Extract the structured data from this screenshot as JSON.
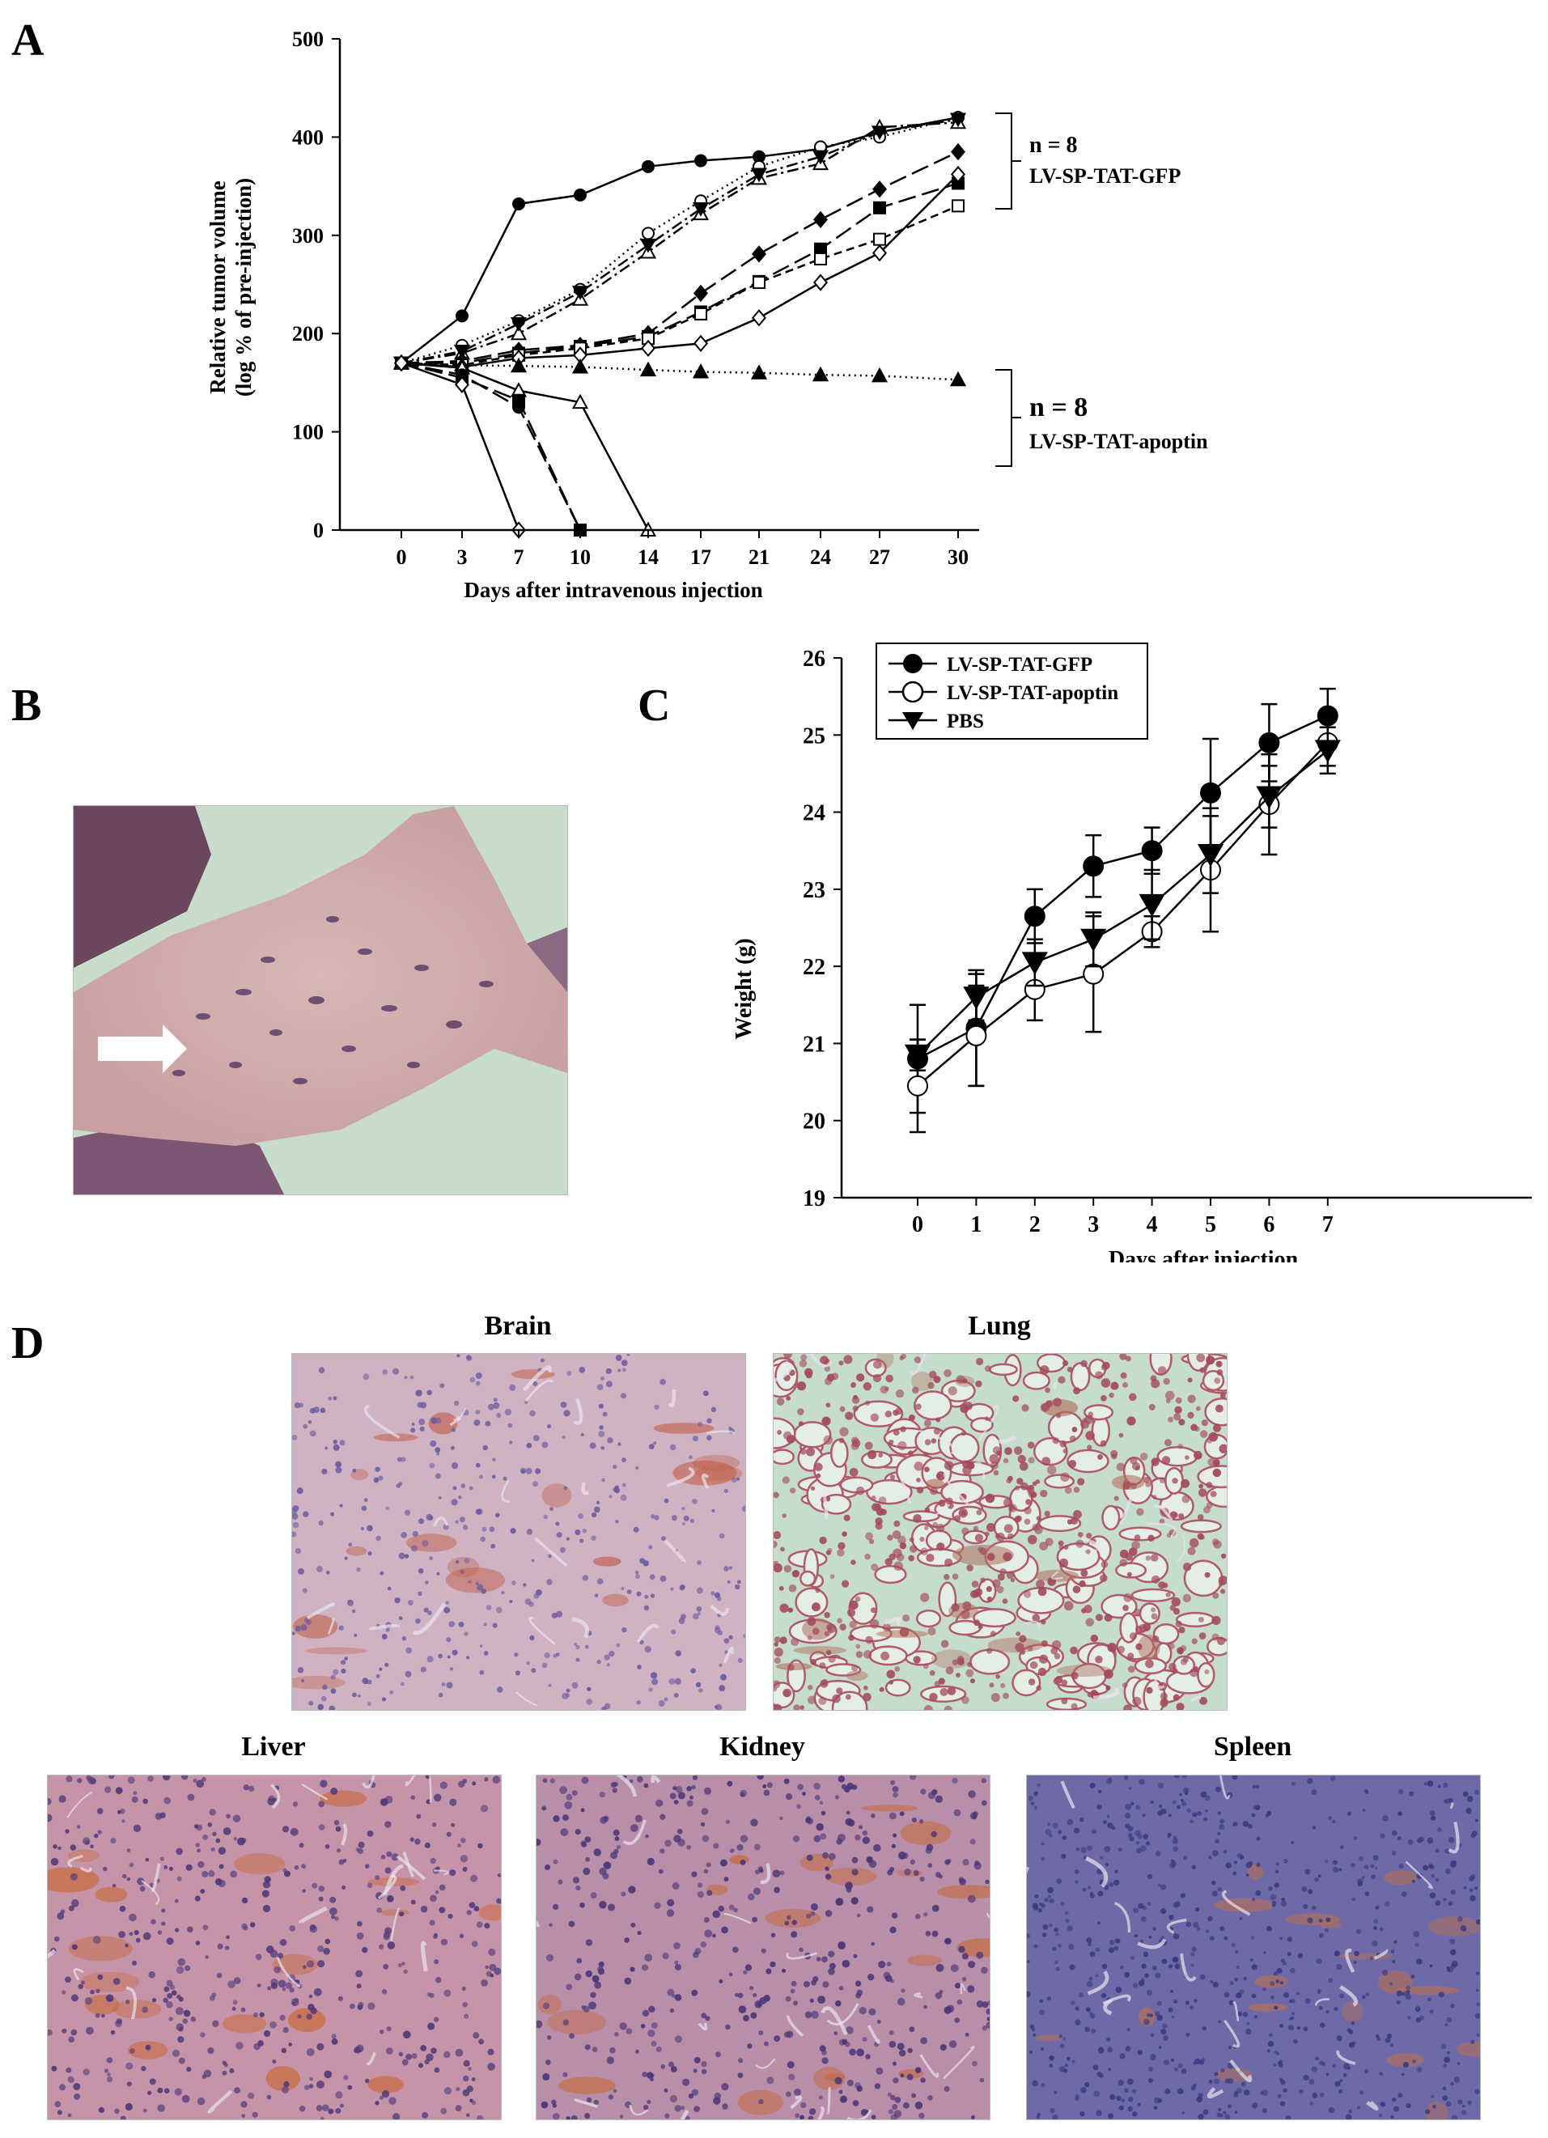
{
  "panels": {
    "A": "A",
    "B": "B",
    "C": "C",
    "D": "D"
  },
  "chart_data": [
    {
      "type": "line",
      "panel": "A",
      "xlabel": "Days after intravenous injection",
      "ylabel_line1": "Relative tumor volume",
      "ylabel_line2": "(log % of pre-injection)",
      "x_ticks": [
        0,
        3,
        7,
        10,
        14,
        17,
        21,
        24,
        27,
        30
      ],
      "y_ticks": [
        0,
        100,
        200,
        300,
        400,
        500
      ],
      "ylim": [
        0,
        500
      ],
      "groups": [
        {
          "n_label": "n = 8",
          "label": "LV-SP-TAT-GFP"
        },
        {
          "n_label": "n = 8",
          "label": "LV-SP-TAT-apoptin"
        }
      ],
      "series": [
        {
          "marker": "filled-circle",
          "line": "solid",
          "group": "GFP",
          "x": [
            0,
            3,
            7,
            10,
            14,
            17,
            21,
            24,
            27,
            30
          ],
          "y": [
            170,
            218,
            332,
            341,
            370,
            376,
            380,
            388,
            405,
            420
          ]
        },
        {
          "marker": "open-circle",
          "line": "dotted",
          "group": "GFP",
          "x": [
            0,
            3,
            7,
            10,
            14,
            17,
            21,
            24,
            27,
            30
          ],
          "y": [
            170,
            188,
            213,
            245,
            302,
            335,
            370,
            390,
            400,
            420
          ]
        },
        {
          "marker": "open-triangle",
          "line": "dash-dot",
          "group": "GFP",
          "x": [
            0,
            3,
            7,
            10,
            14,
            17,
            21,
            24,
            27,
            30
          ],
          "y": [
            170,
            180,
            200,
            235,
            283,
            322,
            358,
            373,
            410,
            415
          ]
        },
        {
          "marker": "filled-inverted-triangle",
          "line": "dash-dot",
          "group": "GFP",
          "x": [
            0,
            3,
            7,
            10,
            14,
            17,
            21,
            24,
            27,
            30
          ],
          "y": [
            170,
            182,
            210,
            242,
            290,
            327,
            362,
            380,
            405,
            418
          ]
        },
        {
          "marker": "filled-diamond",
          "line": "long-dash",
          "group": "GFP",
          "x": [
            0,
            3,
            7,
            10,
            14,
            17,
            21,
            24,
            27,
            30
          ],
          "y": [
            170,
            172,
            183,
            188,
            200,
            241,
            281,
            316,
            347,
            385
          ]
        },
        {
          "marker": "filled-square",
          "line": "long-dash",
          "group": "GFP",
          "x": [
            0,
            3,
            7,
            10,
            14,
            17,
            21,
            24,
            27,
            30
          ],
          "y": [
            170,
            170,
            180,
            187,
            197,
            222,
            253,
            286,
            328,
            353
          ]
        },
        {
          "marker": "open-square",
          "line": "dash",
          "group": "GFP",
          "x": [
            0,
            3,
            7,
            10,
            14,
            17,
            21,
            24,
            27,
            30
          ],
          "y": [
            170,
            168,
            178,
            185,
            195,
            220,
            252,
            276,
            296,
            330
          ]
        },
        {
          "marker": "open-diamond",
          "line": "solid",
          "group": "GFP",
          "x": [
            0,
            3,
            7,
            10,
            14,
            17,
            21,
            24,
            27,
            30
          ],
          "y": [
            170,
            166,
            175,
            178,
            185,
            190,
            216,
            252,
            282,
            362
          ]
        },
        {
          "marker": "filled-triangle",
          "line": "dotted",
          "group": "apoptin",
          "x": [
            0,
            3,
            7,
            10,
            14,
            17,
            21,
            24,
            27,
            30
          ],
          "y": [
            170,
            168,
            167,
            166,
            163,
            161,
            160,
            158,
            157,
            153
          ]
        },
        {
          "marker": "open-triangle",
          "line": "solid",
          "group": "apoptin",
          "x": [
            0,
            3,
            7,
            10,
            14
          ],
          "y": [
            170,
            165,
            142,
            130,
            0
          ]
        },
        {
          "marker": "filled-circle",
          "line": "long-dash",
          "group": "apoptin",
          "x": [
            0,
            3,
            7,
            10
          ],
          "y": [
            170,
            158,
            125,
            0
          ]
        },
        {
          "marker": "filled-square",
          "line": "long-dash",
          "group": "apoptin",
          "x": [
            0,
            3,
            7,
            10
          ],
          "y": [
            170,
            155,
            132,
            0
          ]
        },
        {
          "marker": "open-diamond",
          "line": "solid",
          "group": "apoptin",
          "x": [
            0,
            3,
            7
          ],
          "y": [
            170,
            148,
            0
          ]
        }
      ]
    },
    {
      "type": "line",
      "panel": "C",
      "xlabel": "Days after injection",
      "ylabel": "Weight  (g)",
      "x_ticks": [
        0,
        1,
        2,
        3,
        4,
        5,
        6,
        7
      ],
      "y_ticks": [
        19,
        20,
        21,
        22,
        23,
        24,
        25,
        26
      ],
      "ylim": [
        19,
        26
      ],
      "legend_position": "top-left",
      "series": [
        {
          "name": "LV-SP-TAT-GFP",
          "marker": "filled-circle",
          "x": [
            0,
            1,
            2,
            3,
            4,
            5,
            6,
            7
          ],
          "y": [
            20.8,
            21.2,
            22.65,
            23.3,
            23.5,
            24.25,
            24.9,
            25.25
          ],
          "err": [
            0.7,
            0.75,
            0.35,
            0.4,
            0.3,
            0.7,
            0.5,
            0.35
          ]
        },
        {
          "name": "LV-SP-TAT-apoptin",
          "marker": "open-circle",
          "x": [
            0,
            1,
            2,
            3,
            4,
            5,
            6,
            7
          ],
          "y": [
            20.45,
            21.1,
            21.7,
            21.9,
            22.45,
            23.25,
            24.1,
            24.9
          ],
          "err": [
            0.6,
            0.65,
            0.4,
            0.75,
            0.2,
            0.8,
            0.65,
            0.3
          ]
        },
        {
          "name": "PBS",
          "marker": "filled-inverted-triangle",
          "x": [
            0,
            1,
            2,
            3,
            4,
            5,
            6,
            7
          ],
          "y": [
            20.85,
            21.6,
            22.05,
            22.35,
            22.8,
            23.45,
            24.2,
            24.8
          ],
          "err": [
            0.2,
            0.3,
            0.3,
            0.35,
            0.45,
            0.5,
            0.4,
            0.3
          ]
        }
      ]
    }
  ],
  "tissue_titles": {
    "brain": "Brain",
    "lung": "Lung",
    "liver": "Liver",
    "kidney": "Kidney",
    "spleen": "Spleen"
  }
}
